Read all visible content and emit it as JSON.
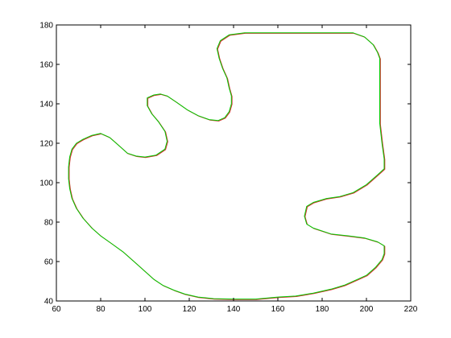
{
  "chart_data": {
    "type": "line",
    "title": "",
    "xlabel": "",
    "ylabel": "",
    "xlim": [
      60,
      220
    ],
    "ylim": [
      40,
      180
    ],
    "grid": false,
    "x_ticks": [
      60,
      80,
      100,
      120,
      140,
      160,
      180,
      200,
      220
    ],
    "y_ticks": [
      40,
      60,
      80,
      100,
      120,
      140,
      160,
      180
    ],
    "series": [
      {
        "color": "#d62728",
        "points": [
          [
            140,
            41
          ],
          [
            150,
            41
          ],
          [
            160,
            42
          ],
          [
            168,
            42.5
          ],
          [
            176,
            44
          ],
          [
            184,
            46
          ],
          [
            190,
            48
          ],
          [
            196,
            51
          ],
          [
            200,
            53
          ],
          [
            204,
            57
          ],
          [
            207,
            61
          ],
          [
            208,
            64
          ],
          [
            208,
            68
          ],
          [
            205,
            70
          ],
          [
            199,
            72
          ],
          [
            192,
            73
          ],
          [
            184,
            74
          ],
          [
            176,
            77
          ],
          [
            173,
            79
          ],
          [
            172,
            83
          ],
          [
            173,
            88
          ],
          [
            176,
            90
          ],
          [
            182,
            92
          ],
          [
            188,
            93
          ],
          [
            194,
            95
          ],
          [
            200,
            99
          ],
          [
            205,
            104
          ],
          [
            208,
            107
          ],
          [
            208,
            112
          ],
          [
            207,
            120
          ],
          [
            206,
            130
          ],
          [
            206,
            140
          ],
          [
            206,
            150
          ],
          [
            206,
            160
          ],
          [
            206,
            163
          ],
          [
            205,
            166
          ],
          [
            203,
            170
          ],
          [
            199,
            174
          ],
          [
            194,
            176
          ],
          [
            185,
            176
          ],
          [
            175,
            176
          ],
          [
            160,
            176
          ],
          [
            150,
            176
          ],
          [
            145,
            176
          ],
          [
            138,
            175
          ],
          [
            134,
            172
          ],
          [
            132.5,
            168
          ],
          [
            133.5,
            163
          ],
          [
            135,
            158
          ],
          [
            137,
            153
          ],
          [
            138,
            148
          ],
          [
            139,
            144
          ],
          [
            139,
            140
          ],
          [
            138,
            136
          ],
          [
            136,
            133
          ],
          [
            133,
            131.5
          ],
          [
            129,
            132
          ],
          [
            124,
            134
          ],
          [
            119,
            137
          ],
          [
            114,
            141
          ],
          [
            110,
            144
          ],
          [
            107,
            145
          ],
          [
            104,
            144.5
          ],
          [
            101,
            143
          ],
          [
            101,
            139
          ],
          [
            103,
            135
          ],
          [
            106,
            131
          ],
          [
            109,
            126
          ],
          [
            110,
            121
          ],
          [
            109,
            117
          ],
          [
            105,
            114
          ],
          [
            100,
            113
          ],
          [
            96,
            113.5
          ],
          [
            92,
            115
          ],
          [
            88,
            119
          ],
          [
            84,
            123
          ],
          [
            80,
            125
          ],
          [
            76,
            124
          ],
          [
            72,
            122
          ],
          [
            69,
            120
          ],
          [
            67,
            117
          ],
          [
            66,
            113
          ],
          [
            65.5,
            108
          ],
          [
            65.5,
            102
          ],
          [
            66,
            97
          ],
          [
            67,
            92
          ],
          [
            69,
            87
          ],
          [
            72,
            82
          ],
          [
            76,
            77
          ],
          [
            80,
            73
          ],
          [
            85,
            69
          ],
          [
            90,
            65
          ],
          [
            96,
            59
          ],
          [
            100,
            55
          ],
          [
            104,
            51
          ],
          [
            108,
            48
          ],
          [
            113,
            45.5
          ],
          [
            118,
            43.5
          ],
          [
            124,
            42
          ],
          [
            131,
            41.2
          ],
          [
            140,
            41
          ]
        ]
      },
      {
        "color": "#00cc00",
        "points": [
          [
            140,
            41
          ],
          [
            150,
            41
          ],
          [
            160,
            42
          ],
          [
            168,
            42.5
          ],
          [
            176,
            44
          ],
          [
            184,
            46
          ],
          [
            190,
            48
          ],
          [
            196,
            51
          ],
          [
            200,
            53
          ],
          [
            204,
            57
          ],
          [
            207,
            61
          ],
          [
            208,
            64
          ],
          [
            208,
            68
          ],
          [
            205,
            70
          ],
          [
            199,
            72
          ],
          [
            192,
            73
          ],
          [
            184,
            74
          ],
          [
            176,
            77
          ],
          [
            173,
            79
          ],
          [
            172,
            83
          ],
          [
            173,
            88
          ],
          [
            176,
            90
          ],
          [
            182,
            92
          ],
          [
            188,
            93
          ],
          [
            194,
            95
          ],
          [
            200,
            99
          ],
          [
            205,
            104
          ],
          [
            208,
            107
          ],
          [
            208,
            112
          ],
          [
            207,
            120
          ],
          [
            206,
            130
          ],
          [
            206,
            140
          ],
          [
            206,
            150
          ],
          [
            206,
            160
          ],
          [
            206,
            163
          ],
          [
            205,
            166
          ],
          [
            203,
            170
          ],
          [
            199,
            174
          ],
          [
            194,
            176
          ],
          [
            185,
            176
          ],
          [
            175,
            176
          ],
          [
            160,
            176
          ],
          [
            150,
            176
          ],
          [
            145,
            176
          ],
          [
            138,
            175
          ],
          [
            134,
            172
          ],
          [
            132.5,
            168
          ],
          [
            133.5,
            163
          ],
          [
            135,
            158
          ],
          [
            137,
            153
          ],
          [
            138,
            148
          ],
          [
            139,
            144
          ],
          [
            139,
            140
          ],
          [
            138,
            136
          ],
          [
            136,
            133
          ],
          [
            133,
            131.5
          ],
          [
            129,
            132
          ],
          [
            124,
            134
          ],
          [
            119,
            137
          ],
          [
            114,
            141
          ],
          [
            110,
            144
          ],
          [
            107,
            145
          ],
          [
            104,
            144.5
          ],
          [
            101,
            143
          ],
          [
            101,
            139
          ],
          [
            103,
            135
          ],
          [
            106,
            131
          ],
          [
            109,
            126
          ],
          [
            110,
            121
          ],
          [
            109,
            117
          ],
          [
            105,
            114
          ],
          [
            100,
            113
          ],
          [
            96,
            113.5
          ],
          [
            92,
            115
          ],
          [
            88,
            119
          ],
          [
            84,
            123
          ],
          [
            80,
            125
          ],
          [
            76,
            124
          ],
          [
            72,
            122
          ],
          [
            69,
            120
          ],
          [
            67,
            117
          ],
          [
            66,
            113
          ],
          [
            65.5,
            108
          ],
          [
            65.5,
            102
          ],
          [
            66,
            97
          ],
          [
            67,
            92
          ],
          [
            69,
            87
          ],
          [
            72,
            82
          ],
          [
            76,
            77
          ],
          [
            80,
            73
          ],
          [
            85,
            69
          ],
          [
            90,
            65
          ],
          [
            96,
            59
          ],
          [
            100,
            55
          ],
          [
            104,
            51
          ],
          [
            108,
            48
          ],
          [
            113,
            45.5
          ],
          [
            118,
            43.5
          ],
          [
            124,
            42
          ],
          [
            131,
            41.2
          ],
          [
            140,
            41
          ]
        ]
      }
    ]
  }
}
